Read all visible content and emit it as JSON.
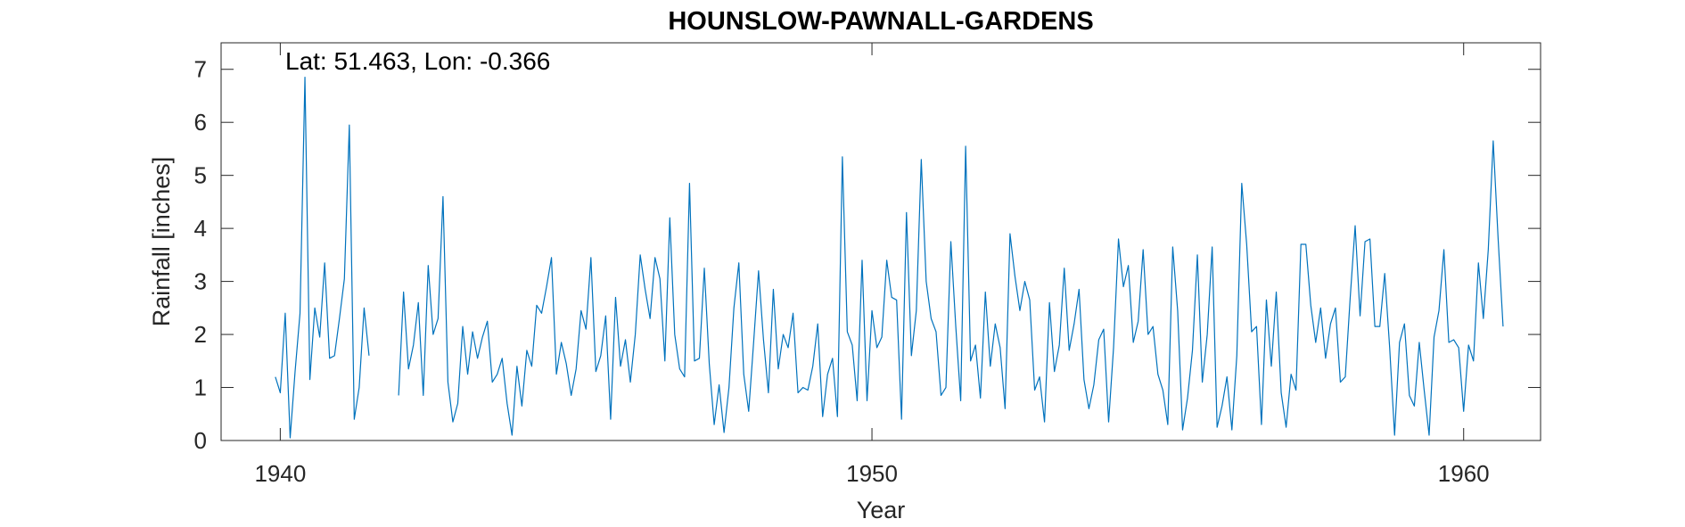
{
  "chart_data": {
    "type": "line",
    "title": "HOUNSLOW-PAWNALL-GARDENS",
    "annotation": "Lat: 51.463, Lon: -0.366",
    "xlabel": "Year",
    "ylabel": "Rainfall [inches]",
    "xlim": [
      1939.0,
      1961.3
    ],
    "ylim": [
      0,
      7.5
    ],
    "xticks": [
      1940,
      1950,
      1960
    ],
    "yticks": [
      0,
      1,
      2,
      3,
      4,
      5,
      6,
      7
    ],
    "grid": false,
    "line_color": "#0072BD",
    "series": [
      {
        "x_start": 1939.917,
        "x_step": 0.08333,
        "values": [
          1.2,
          0.9,
          2.4,
          0.05,
          1.3,
          2.4,
          6.85,
          1.15,
          2.5,
          1.95,
          3.35,
          1.55,
          1.6,
          2.3,
          3.05,
          5.95,
          0.4,
          1.0,
          2.5,
          1.6,
          null,
          null,
          null,
          null,
          null,
          0.85,
          2.8,
          1.35,
          1.8,
          2.6,
          0.85,
          3.3,
          2.0,
          2.3,
          4.6,
          1.1,
          0.35,
          0.7,
          2.15,
          1.25,
          2.05,
          1.55,
          1.95,
          2.25,
          1.1,
          1.25,
          1.55,
          0.7,
          0.1,
          1.4,
          0.65,
          1.7,
          1.4,
          2.55,
          2.4,
          2.9,
          3.45,
          1.25,
          1.85,
          1.45,
          0.85,
          1.35,
          2.45,
          2.1,
          3.45,
          1.3,
          1.6,
          2.35,
          0.4,
          2.7,
          1.4,
          1.9,
          1.1,
          2.0,
          3.5,
          2.85,
          2.3,
          3.45,
          3.05,
          1.5,
          4.2,
          2.0,
          1.35,
          1.2,
          4.85,
          1.5,
          1.55,
          3.25,
          1.45,
          0.3,
          1.05,
          0.15,
          1.0,
          2.5,
          3.35,
          1.25,
          0.55,
          1.85,
          3.2,
          1.9,
          0.9,
          2.85,
          1.35,
          2.0,
          1.75,
          2.4,
          0.9,
          1.0,
          0.95,
          1.4,
          2.2,
          0.45,
          1.25,
          1.55,
          0.45,
          5.35,
          2.05,
          1.8,
          0.75,
          3.4,
          0.75,
          2.45,
          1.75,
          1.95,
          3.4,
          2.7,
          2.65,
          0.4,
          4.3,
          1.6,
          2.45,
          5.3,
          3.0,
          2.3,
          2.05,
          0.85,
          1.0,
          3.75,
          2.15,
          0.75,
          5.55,
          1.5,
          1.8,
          0.8,
          2.8,
          1.4,
          2.2,
          1.75,
          0.6,
          3.9,
          3.1,
          2.45,
          3.0,
          2.65,
          0.95,
          1.2,
          0.35,
          2.6,
          1.3,
          1.8,
          3.25,
          1.7,
          2.2,
          2.85,
          1.15,
          0.6,
          1.05,
          1.9,
          2.1,
          0.35,
          1.75,
          3.8,
          2.9,
          3.3,
          1.85,
          2.25,
          3.6,
          2.0,
          2.15,
          1.25,
          0.95,
          0.3,
          3.65,
          2.45,
          0.2,
          0.8,
          1.7,
          3.5,
          1.1,
          2.0,
          3.65,
          0.25,
          0.65,
          1.2,
          0.2,
          1.6,
          4.85,
          3.7,
          2.05,
          2.15,
          0.3,
          2.65,
          1.4,
          2.8,
          0.9,
          0.25,
          1.25,
          0.95,
          3.7,
          3.7,
          2.55,
          1.85,
          2.5,
          1.55,
          2.2,
          2.5,
          1.1,
          1.2,
          2.7,
          4.05,
          2.35,
          3.75,
          3.8,
          2.15,
          2.15,
          3.15,
          1.75,
          0.1,
          1.85,
          2.2,
          0.85,
          0.65,
          1.85,
          0.95,
          0.1,
          1.95,
          2.45,
          3.6,
          1.85,
          1.9,
          1.75,
          0.55,
          1.8,
          1.5,
          3.35,
          2.3,
          3.6,
          5.65,
          3.8,
          2.15
        ]
      }
    ]
  }
}
